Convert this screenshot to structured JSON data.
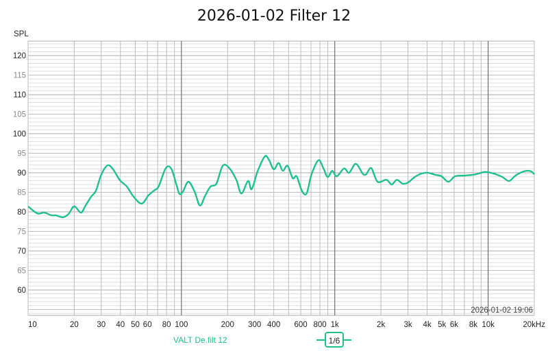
{
  "chart_data": {
    "type": "line",
    "title": "2026-01-02 Filter 12",
    "ylabel": "SPL",
    "xlabel": "",
    "x_unit": "kHz",
    "x_scale": "log",
    "xlim": [
      10,
      20000
    ],
    "ylim": [
      53.5,
      123.7
    ],
    "grid": true,
    "yticks": [
      60,
      65,
      70,
      75,
      80,
      85,
      90,
      95,
      100,
      105,
      110,
      115,
      120
    ],
    "xticks": [
      {
        "v": 10,
        "label": "10"
      },
      {
        "v": 20,
        "label": "20"
      },
      {
        "v": 30,
        "label": "30"
      },
      {
        "v": 40,
        "label": "40"
      },
      {
        "v": 50,
        "label": "50"
      },
      {
        "v": 60,
        "label": "60"
      },
      {
        "v": 80,
        "label": "80"
      },
      {
        "v": 100,
        "label": "100"
      },
      {
        "v": 200,
        "label": "200"
      },
      {
        "v": 300,
        "label": "300"
      },
      {
        "v": 400,
        "label": "400"
      },
      {
        "v": 600,
        "label": "600"
      },
      {
        "v": 800,
        "label": "800"
      },
      {
        "v": 1000,
        "label": "1k"
      },
      {
        "v": 2000,
        "label": "2k"
      },
      {
        "v": 3000,
        "label": "3k"
      },
      {
        "v": 4000,
        "label": "4k"
      },
      {
        "v": 5000,
        "label": "5k"
      },
      {
        "v": 6000,
        "label": "6k"
      },
      {
        "v": 8000,
        "label": "8k"
      },
      {
        "v": 10000,
        "label": "10k"
      },
      {
        "v": 20000,
        "label": "20kHz"
      }
    ],
    "timestamp": "2026-01-02 19:06",
    "legend_placement": "bottom",
    "smoothing_label": "1/6",
    "series": [
      {
        "name": "VALT De.filt 12",
        "color": "#1fbf8f",
        "x": [
          10,
          11.5,
          12.8,
          14.2,
          15.2,
          16.9,
          18.4,
          20,
          22.1,
          23.7,
          25.8,
          27.7,
          30,
          33,
          35.8,
          39.7,
          44,
          48.7,
          55,
          60.9,
          66,
          71,
          78.8,
          85.7,
          93,
          97,
          102,
          111,
          122,
          132,
          143,
          155,
          169,
          186,
          205,
          228,
          246,
          272,
          287,
          314,
          350,
          372,
          400,
          430,
          458,
          492,
          532,
          564,
          610,
          655,
          704,
          782,
          842,
          898,
          962,
          1030,
          1150,
          1240,
          1370,
          1520,
          1600,
          1730,
          1900,
          2170,
          2350,
          2540,
          2770,
          3000,
          3320,
          3680,
          4060,
          4500,
          4970,
          5500,
          6100,
          7100,
          8300,
          9500,
          10900,
          12400,
          13700,
          15100,
          17200,
          19000,
          20000
        ],
        "y": [
          81.4,
          79.6,
          79.8,
          79.1,
          79.1,
          78.6,
          79.5,
          81.4,
          79.8,
          81.6,
          83.9,
          85.4,
          89.5,
          91.9,
          90.9,
          88.1,
          86.5,
          83.9,
          82.1,
          84.2,
          85.4,
          86.5,
          91.1,
          91.1,
          86.8,
          84.6,
          85.1,
          87.7,
          85.1,
          81.6,
          84.2,
          86.5,
          87.2,
          91.8,
          91.2,
          88.2,
          84.7,
          87.9,
          85.8,
          90.4,
          94.2,
          93.3,
          90.9,
          92.5,
          90.5,
          91.8,
          88.6,
          89.1,
          85.4,
          84.7,
          89.5,
          93.2,
          91.2,
          88.9,
          90.5,
          89.1,
          91.1,
          90.0,
          92.3,
          89.8,
          89.6,
          91.2,
          87.7,
          88.2,
          87.0,
          88.2,
          87.2,
          87.5,
          88.9,
          89.8,
          90.0,
          89.5,
          89.1,
          87.7,
          89.1,
          89.3,
          89.6,
          90.2,
          89.8,
          88.9,
          87.9,
          89.3,
          90.4,
          90.4,
          89.6
        ]
      }
    ]
  }
}
